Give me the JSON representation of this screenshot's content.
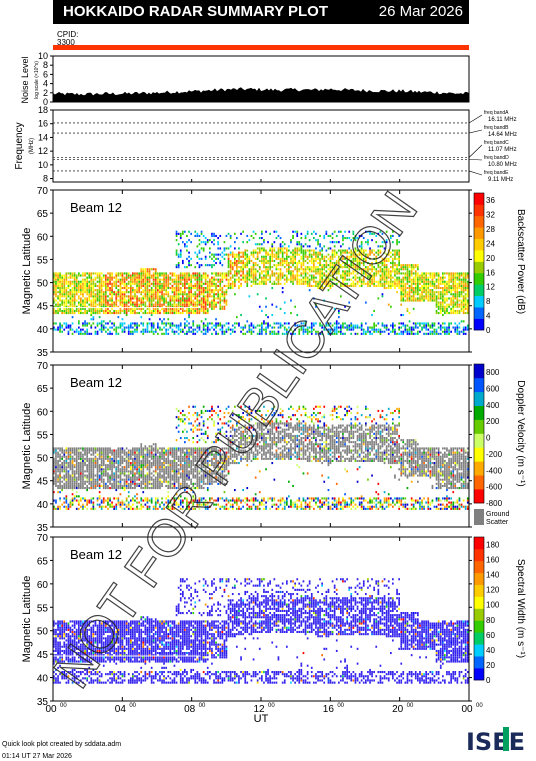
{
  "header": {
    "title": "HOKKAIDO RADAR SUMMARY PLOT",
    "date": "26 Mar 2026"
  },
  "cpid": {
    "label": "CPID:",
    "value": "3300"
  },
  "noise_panel": {
    "ylabel": "Noise Level",
    "ylabel_units": "log scale (×10^x)",
    "ticks": [
      "0",
      "2",
      "4",
      "6",
      "8",
      "10"
    ]
  },
  "freq_panel": {
    "ylabel": "Frequency",
    "ylabel_units": "(MHz)",
    "ticks": [
      "8",
      "10",
      "12",
      "14",
      "16",
      "18"
    ],
    "bands": [
      {
        "name": "freq bandA",
        "value": "16.11 MHz"
      },
      {
        "name": "freq bandB",
        "value": "14.64 MHz"
      },
      {
        "name": "freq bandC",
        "value": "11.07 MHz"
      },
      {
        "name": "freq bandD",
        "value": "10.80 MHz"
      },
      {
        "name": "freq bandE",
        "value": "9.11 MHz"
      }
    ]
  },
  "panels": [
    {
      "beam": "Beam 12",
      "ylabel": "Magnetic Latitude",
      "yticks": [
        "35",
        "40",
        "45",
        "50",
        "55",
        "60",
        "65",
        "70"
      ],
      "colorbar_label": "Backscatter Power (dB)",
      "colorbar_ticks": [
        "0",
        "4",
        "8",
        "12",
        "16",
        "20",
        "24",
        "28",
        "32",
        "36"
      ]
    },
    {
      "beam": "Beam 12",
      "ylabel": "Magnetic Latitude",
      "yticks": [
        "35",
        "40",
        "45",
        "50",
        "55",
        "60",
        "65",
        "70"
      ],
      "colorbar_label": "Doppler Velocity (m s⁻¹)",
      "colorbar_ticks": [
        "-800",
        "-600",
        "-400",
        "-200",
        "0",
        "200",
        "400",
        "600",
        "800"
      ],
      "ground_scatter_label": [
        "Ground",
        "Scatter"
      ]
    },
    {
      "beam": "Beam 12",
      "ylabel": "Magnetic Latitude",
      "yticks": [
        "35",
        "40",
        "45",
        "50",
        "55",
        "60",
        "65",
        "70"
      ],
      "colorbar_label": "Spectral Width (m s⁻¹)",
      "colorbar_ticks": [
        "0",
        "20",
        "40",
        "60",
        "80",
        "100",
        "120",
        "140",
        "160",
        "180"
      ]
    }
  ],
  "xaxis": {
    "label": "UT",
    "ticks": [
      "00",
      "04",
      "08",
      "12",
      "16",
      "20",
      "00"
    ],
    "tick_suffix": "00"
  },
  "watermark": "NOT FOR PUBLICATION",
  "footer": {
    "line1": "Quick look plot created by sddata.adm",
    "line2": "01:14 UT 27 Mar 2026"
  },
  "logo": "ISEE",
  "colors": {
    "accent_bar": "#ff3300",
    "ground_scatter": "#808080",
    "power_scale": [
      "#0000ff",
      "#0066ff",
      "#00ccff",
      "#00cc66",
      "#33cc00",
      "#99cc00",
      "#ffff00",
      "#ffcc00",
      "#ff9900",
      "#ff6600",
      "#ff3300",
      "#ff0000"
    ],
    "velocity_scale": [
      "#ff0000",
      "#ff6600",
      "#ffaa00",
      "#ffff00",
      "#ccff66",
      "#66cc00",
      "#00aa00",
      "#00aacc",
      "#0055ff",
      "#0000cc"
    ]
  },
  "chart_data": [
    {
      "type": "line",
      "title": "",
      "ylabel": "Noise Level",
      "ylim": [
        0,
        10
      ],
      "x_unit": "UT hour",
      "x": [
        0,
        1,
        2,
        3,
        4,
        5,
        6,
        7,
        8,
        9,
        10,
        11,
        12,
        13,
        14,
        15,
        16,
        17,
        18,
        19,
        20,
        21,
        22,
        23,
        24
      ],
      "values": [
        1.6,
        1.5,
        1.5,
        1.6,
        1.6,
        1.7,
        1.8,
        2.0,
        2.1,
        2.3,
        2.5,
        2.6,
        2.5,
        2.4,
        2.5,
        2.4,
        2.6,
        2.4,
        2.3,
        2.2,
        2.2,
        2.0,
        1.9,
        1.7,
        1.6
      ]
    },
    {
      "type": "line",
      "title": "",
      "ylabel": "Frequency (MHz)",
      "ylim": [
        7.5,
        18
      ],
      "series": [
        {
          "name": "freq bandA",
          "value": 16.11
        },
        {
          "name": "freq bandB",
          "value": 14.64
        },
        {
          "name": "freq bandC",
          "value": 11.07
        },
        {
          "name": "freq bandD",
          "value": 10.8
        },
        {
          "name": "freq bandE",
          "value": 9.11
        }
      ]
    },
    {
      "type": "heatmap",
      "title": "",
      "ylabel": "Magnetic Latitude",
      "xlabel": "UT",
      "ylim": [
        35,
        70
      ],
      "xlim": [
        0,
        24
      ],
      "zlabel": "Backscatter Power (dB)",
      "zlim": [
        0,
        36
      ]
    },
    {
      "type": "heatmap",
      "title": "",
      "ylabel": "Magnetic Latitude",
      "xlabel": "UT",
      "ylim": [
        35,
        70
      ],
      "xlim": [
        0,
        24
      ],
      "zlabel": "Doppler Velocity (m s⁻¹)",
      "zlim": [
        -800,
        800
      ]
    },
    {
      "type": "heatmap",
      "title": "",
      "ylabel": "Magnetic Latitude",
      "xlabel": "UT",
      "ylim": [
        35,
        70
      ],
      "xlim": [
        0,
        24
      ],
      "zlabel": "Spectral Width (m s⁻¹)",
      "zlim": [
        0,
        180
      ]
    }
  ]
}
